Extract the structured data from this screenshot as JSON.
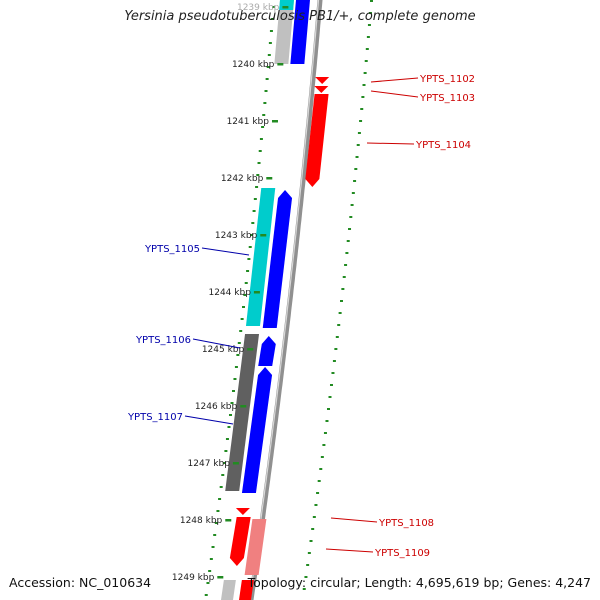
{
  "title": "Yersinia pseudotuberculosis PB1/+, complete genome",
  "footer": {
    "accession": "Accession: NC_010634",
    "summary": "Topology: circular; Length: 4,695,619 bp; Genes: 4,247"
  },
  "ticks": [
    "1239 kbp",
    "1240 kbp",
    "1241 kbp",
    "1242 kbp",
    "1243 kbp",
    "1244 kbp",
    "1245 kbp",
    "1246 kbp",
    "1247 kbp",
    "1248 kbp",
    "1249 kbp"
  ],
  "genes": [
    {
      "label": "YPTS_1102",
      "strand": "forward",
      "start": 1240.18,
      "end": 1240.25,
      "color": "#ff0000"
    },
    {
      "label": "YPTS_1103",
      "strand": "forward",
      "start": 1240.28,
      "end": 1240.35,
      "color": "#ff0000"
    },
    {
      "label": "YPTS_1104",
      "strand": "forward",
      "start": 1240.5,
      "end": 1242.15,
      "color": "#ff0000"
    },
    {
      "label": "YPTS_1105",
      "strand": "reverse",
      "start": 1242.2,
      "end": 1244.55,
      "color": "#0000ff"
    },
    {
      "label": "YPTS_1106",
      "strand": "reverse",
      "start": 1244.85,
      "end": 1245.4,
      "color": "#0000ff"
    },
    {
      "label": "YPTS_1107",
      "strand": "reverse",
      "start": 1245.5,
      "end": 1247.6,
      "color": "#0000ff"
    },
    {
      "label": "YPTS_1108",
      "strand": "forward",
      "start": 1248.1,
      "end": 1249.0,
      "color": "#ff0000"
    },
    {
      "label": "YPTS_1109",
      "strand": "forward",
      "start": 1248.1,
      "end": 1249.0,
      "color": "#f08080"
    }
  ],
  "colors": {
    "forward_cds": "#ff0000",
    "reverse_cds": "#0000ff",
    "reverse_gene": "#00cccc",
    "forward_gene_alt": "#f08080",
    "other_feature": "#606060",
    "backbone": "#909090",
    "gc_skew": "#228b22",
    "label_forward": "#cc0000",
    "label_reverse": "#0000aa"
  }
}
